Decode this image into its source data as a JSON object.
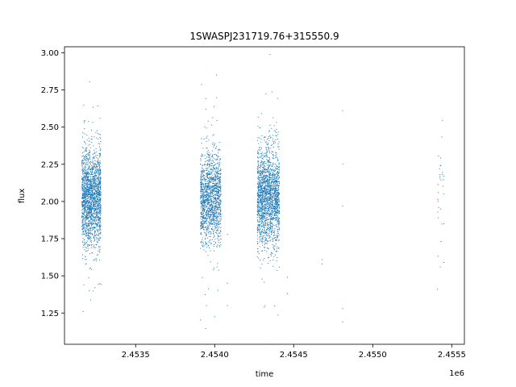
{
  "chart_data": {
    "type": "scatter",
    "title": "1SWASPJ231719.76+315550.9",
    "xlabel": "time",
    "ylabel": "flux",
    "x_offset_label": "1e6",
    "xlim": [
      2.45305,
      2.45558
    ],
    "ylim": [
      1.04,
      3.04
    ],
    "x_ticks": [
      2.4535,
      2.454,
      2.4545,
      2.455,
      2.4555
    ],
    "x_tick_labels": [
      "2.4535",
      "2.4540",
      "2.4545",
      "2.4550",
      "2.4555"
    ],
    "y_ticks": [
      1.25,
      1.5,
      1.75,
      2.0,
      2.25,
      2.5,
      2.75,
      3.0
    ],
    "y_tick_labels": [
      "1.25",
      "1.50",
      "1.75",
      "2.00",
      "2.25",
      "2.50",
      "2.75",
      "3.00"
    ],
    "grid": false,
    "marker_color": "#1f77b4",
    "series": [
      {
        "clusters": [
          {
            "x_range": [
              2.45316,
              2.45328
            ],
            "y_center": 2.03,
            "y_spread": 0.16,
            "count": 1900
          },
          {
            "x_range": [
              2.45391,
              2.45404
            ],
            "y_center": 2.02,
            "y_spread": 0.15,
            "count": 1500
          },
          {
            "x_range": [
              2.45427,
              2.45441
            ],
            "y_center": 2.03,
            "y_spread": 0.16,
            "count": 1900
          },
          {
            "x_range": [
              2.45541,
              2.45545
            ],
            "y_center": 2.05,
            "y_spread": 0.2,
            "count": 30
          }
        ],
        "sparse_points": [
          {
            "x": 2.45468,
            "y": 1.61
          },
          {
            "x": 2.45468,
            "y": 1.58
          },
          {
            "x": 2.45481,
            "y": 2.61
          },
          {
            "x": 2.45481,
            "y": 2.25
          },
          {
            "x": 2.45481,
            "y": 1.97
          },
          {
            "x": 2.45481,
            "y": 1.28
          },
          {
            "x": 2.45481,
            "y": 1.19
          },
          {
            "x": 2.45408,
            "y": 1.78
          },
          {
            "x": 2.45408,
            "y": 1.45
          },
          {
            "x": 2.45408,
            "y": 1.3
          },
          {
            "x": 2.45446,
            "y": 1.49
          },
          {
            "x": 2.45446,
            "y": 1.38
          },
          {
            "x": 2.45541,
            "y": 1.41
          },
          {
            "x": 2.45545,
            "y": 1.59
          },
          {
            "x": 2.45545,
            "y": 1.85
          }
        ]
      }
    ]
  }
}
